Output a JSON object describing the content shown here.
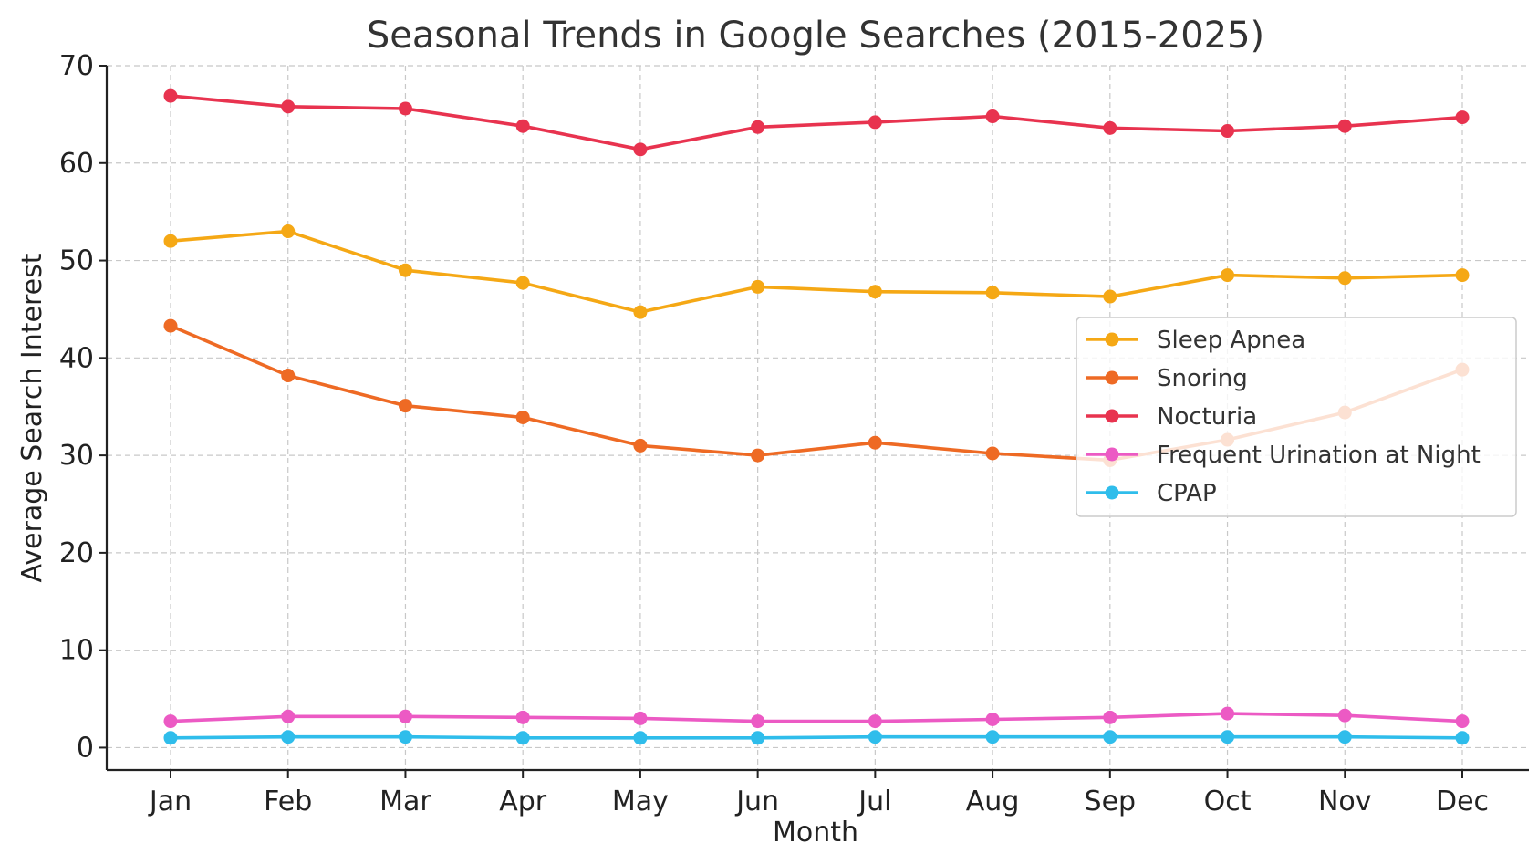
{
  "chart_data": {
    "type": "line",
    "title": "Seasonal Trends in Google Searches (2015-2025)",
    "xlabel": "Month",
    "ylabel": "Average Search Interest",
    "categories": [
      "Jan",
      "Feb",
      "Mar",
      "Apr",
      "May",
      "Jun",
      "Jul",
      "Aug",
      "Sep",
      "Oct",
      "Nov",
      "Dec"
    ],
    "ylim": [
      -2.3,
      70
    ],
    "yticks": [
      0,
      10,
      20,
      30,
      40,
      50,
      60,
      70
    ],
    "grid": true,
    "legend_position": "center-right",
    "series": [
      {
        "name": "Sleep Apnea",
        "color": "#F5A815",
        "values": [
          52.0,
          53.0,
          49.0,
          47.7,
          44.7,
          47.3,
          46.8,
          46.7,
          46.3,
          48.5,
          48.2,
          48.5
        ]
      },
      {
        "name": "Snoring",
        "color": "#EE6A24",
        "values": [
          43.3,
          38.2,
          35.1,
          33.9,
          31.0,
          30.0,
          31.3,
          30.2,
          29.5,
          31.6,
          34.4,
          38.8
        ]
      },
      {
        "name": "Nocturia",
        "color": "#E8334F",
        "values": [
          66.9,
          65.8,
          65.6,
          63.8,
          61.4,
          63.7,
          64.2,
          64.8,
          63.6,
          63.3,
          63.8,
          64.7
        ]
      },
      {
        "name": "Frequent Urination at Night",
        "color": "#EC5AC4",
        "values": [
          2.7,
          3.2,
          3.2,
          3.1,
          3.0,
          2.7,
          2.7,
          2.9,
          3.1,
          3.5,
          3.3,
          2.7
        ]
      },
      {
        "name": "CPAP",
        "color": "#2FBDEB",
        "values": [
          1.0,
          1.1,
          1.1,
          1.0,
          1.0,
          1.0,
          1.1,
          1.1,
          1.1,
          1.1,
          1.1,
          1.0
        ]
      }
    ]
  }
}
